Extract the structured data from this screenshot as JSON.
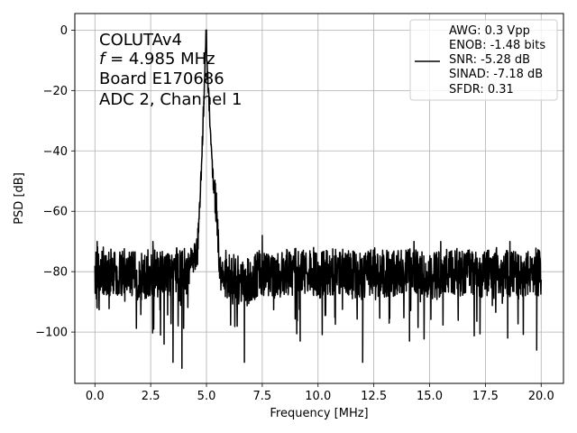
{
  "chart_data": {
    "type": "line",
    "xlabel": "Frequency [MHz]",
    "ylabel": "PSD [dB]",
    "xlim": [
      -0.9,
      21.0
    ],
    "ylim": [
      -117,
      5.5
    ],
    "xticks": [
      0.0,
      2.5,
      5.0,
      7.5,
      10.0,
      12.5,
      15.0,
      17.5,
      20.0
    ],
    "xtick_labels": [
      "0.0",
      "2.5",
      "5.0",
      "7.5",
      "10.0",
      "12.5",
      "15.0",
      "17.5",
      "20.0"
    ],
    "yticks": [
      0,
      -20,
      -40,
      -60,
      -80,
      -100
    ],
    "ytick_labels": [
      "0",
      "−20",
      "−40",
      "−60",
      "−80",
      "−100"
    ],
    "grid": true,
    "annotation": {
      "line1": "COLUTAv4",
      "line2_var": "f",
      "line2_rest": " = 4.985 MHz",
      "line3": "Board E170686",
      "line4": "ADC 2, Channel 1"
    },
    "legend": {
      "placement": "top-right",
      "lines": [
        "AWG: 0.3 Vpp",
        "ENOB: -1.48 bits",
        "SNR: -5.28 dB",
        "SINAD: -7.18 dB",
        "SFDR: 0.31"
      ]
    },
    "series": [
      {
        "color": "#000000",
        "peak_x": 4.985,
        "peak_y": 0,
        "noise_floor": -80,
        "x": [
          0.0,
          0.5,
          1.0,
          1.5,
          2.0,
          2.5,
          3.0,
          3.5,
          4.0,
          4.3,
          4.6,
          4.75,
          4.85,
          4.9,
          4.95,
          4.985,
          5.02,
          5.1,
          5.2,
          5.3,
          5.45,
          5.6,
          6.0,
          6.7,
          7.5,
          8.0,
          9.0,
          10.0,
          11.0,
          12.0,
          12.5,
          13.0,
          14.0,
          15.0,
          16.0,
          17.0,
          18.0,
          19.0,
          19.6,
          20.0
        ],
        "y": [
          -78,
          -80,
          -81,
          -80,
          -82,
          -80,
          -81,
          -80,
          -80,
          -78,
          -72,
          -50,
          -30,
          -20,
          -8,
          0,
          -10,
          -22,
          -38,
          -50,
          -60,
          -80,
          -81,
          -84,
          -80,
          -81,
          -80,
          -81,
          -80,
          -82,
          -80,
          -81,
          -80,
          -82,
          -80,
          -81,
          -80,
          -81,
          -80,
          -80
        ],
        "dips": [
          [
            0.1,
            -92
          ],
          [
            3.1,
            -104
          ],
          [
            3.5,
            -110
          ],
          [
            3.9,
            -112
          ],
          [
            6.7,
            -110
          ],
          [
            9.2,
            -103
          ],
          [
            12.0,
            -110
          ],
          [
            14.1,
            -103
          ],
          [
            18.5,
            -102
          ],
          [
            19.8,
            -106
          ]
        ],
        "spikes": [
          [
            0.1,
            -70
          ],
          [
            2.6,
            -70
          ],
          [
            4.6,
            -72
          ],
          [
            7.5,
            -68
          ],
          [
            9.8,
            -72
          ],
          [
            14.3,
            -70
          ],
          [
            15.5,
            -70
          ],
          [
            18.6,
            -70
          ]
        ]
      }
    ]
  }
}
